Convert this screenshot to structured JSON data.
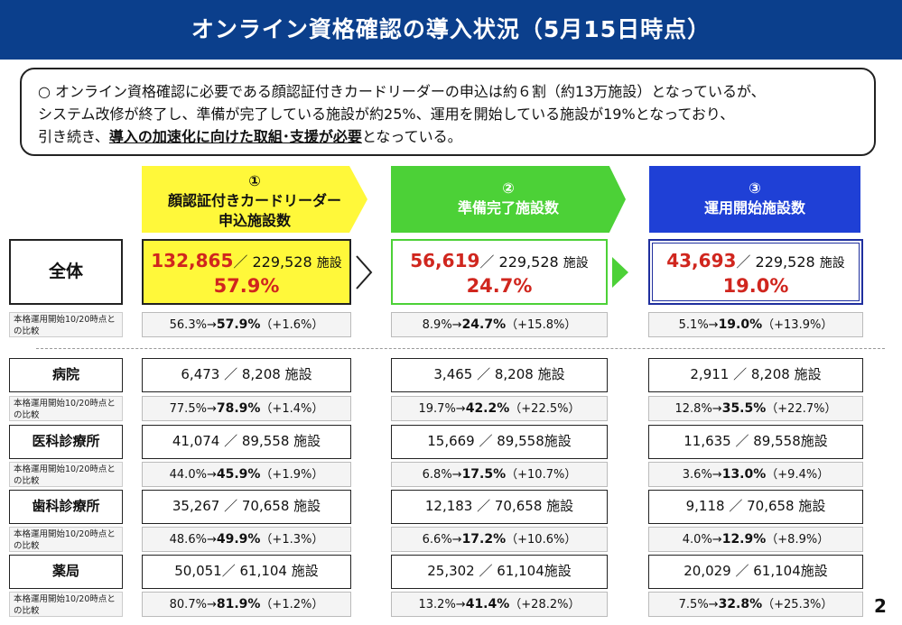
{
  "title": "オンライン資格確認の導入状況（5月15日時点）",
  "summary": {
    "line1": "○ オンライン資格確認に必要である顔認証付きカードリーダーの申込は約６割（約13万施設）となっているが、",
    "line2": "システム改修が終了し、準備が完了している施設が約25%、運用を開始している施設が19%となっており、",
    "line3_pre": "引き続き、",
    "line3_emph": "導入の加速化に向けた取組･支援が必要",
    "line3_post": "となっている。"
  },
  "columns": [
    {
      "number": "①",
      "title1": "顔認証付きカードリーダー",
      "title2": "申込施設数",
      "color": "#fff83a"
    },
    {
      "number": "②",
      "title1": "準備完了施設数",
      "title2": "",
      "color": "#4cd137"
    },
    {
      "number": "③",
      "title1": "運用開始施設数",
      "title2": "",
      "color": "#1f40d6"
    }
  ],
  "total": {
    "label": "全体",
    "compare_label": "本格運用開始10/20時点との比較",
    "cells": [
      {
        "count": "132,865",
        "sep": "／",
        "total": "229,528",
        "unit": "施設",
        "pct": "57.9%",
        "cmp_before": "56.3%→",
        "cmp_now": "57.9%",
        "cmp_diff": "（+1.6%）"
      },
      {
        "count": "56,619",
        "sep": "／",
        "total": "229,528",
        "unit": "施設",
        "pct": "24.7%",
        "cmp_before": "8.9%→",
        "cmp_now": "24.7%",
        "cmp_diff": "（+15.8%）"
      },
      {
        "count": "43,693",
        "sep": "／",
        "total": "229,528",
        "unit": "施設",
        "pct": "19.0%",
        "cmp_before": "5.1%→",
        "cmp_now": "19.0%",
        "cmp_diff": "（+13.9%）"
      }
    ]
  },
  "rows": [
    {
      "label": "病院",
      "compare_label": "本格運用開始10/20時点との比較",
      "cells": [
        {
          "value": "6,473 ／ 8,208 施設",
          "cmp_before": "77.5%→",
          "cmp_now": "78.9%",
          "cmp_diff": "（+1.4%）"
        },
        {
          "value": "3,465 ／ 8,208 施設",
          "cmp_before": "19.7%→",
          "cmp_now": "42.2%",
          "cmp_diff": "（+22.5%）"
        },
        {
          "value": "2,911 ／ 8,208 施設",
          "cmp_before": "12.8%→",
          "cmp_now": "35.5%",
          "cmp_diff": "（+22.7%）"
        }
      ]
    },
    {
      "label": "医科診療所",
      "compare_label": "本格運用開始10/20時点との比較",
      "cells": [
        {
          "value": "41,074 ／ 89,558 施設",
          "cmp_before": "44.0%→",
          "cmp_now": "45.9%",
          "cmp_diff": "（+1.9%）"
        },
        {
          "value": "15,669 ／ 89,558施設",
          "cmp_before": "6.8%→",
          "cmp_now": "17.5%",
          "cmp_diff": "（+10.7%）"
        },
        {
          "value": "11,635 ／ 89,558施設",
          "cmp_before": "3.6%→",
          "cmp_now": "13.0%",
          "cmp_diff": "（+9.4%）"
        }
      ]
    },
    {
      "label": "歯科診療所",
      "compare_label": "本格運用開始10/20時点との比較",
      "cells": [
        {
          "value": "35,267 ／ 70,658 施設",
          "cmp_before": "48.6%→",
          "cmp_now": "49.9%",
          "cmp_diff": "（+1.3%）"
        },
        {
          "value": "12,183 ／ 70,658 施設",
          "cmp_before": "6.6%→",
          "cmp_now": "17.2%",
          "cmp_diff": "（+10.6%）"
        },
        {
          "value": "9,118 ／ 70,658 施設",
          "cmp_before": "4.0%→",
          "cmp_now": "12.9%",
          "cmp_diff": "（+8.9%）"
        }
      ]
    },
    {
      "label": "薬局",
      "compare_label": "本格運用開始10/20時点との比較",
      "cells": [
        {
          "value": "50,051／ 61,104 施設",
          "cmp_before": "80.7%→",
          "cmp_now": "81.9%",
          "cmp_diff": "（+1.2%）"
        },
        {
          "value": "25,302 ／ 61,104施設",
          "cmp_before": "13.2%→",
          "cmp_now": "41.4%",
          "cmp_diff": "（+28.2%）"
        },
        {
          "value": "20,029 ／ 61,104施設",
          "cmp_before": "7.5%→",
          "cmp_now": "32.8%",
          "cmp_diff": "（+25.3%）"
        }
      ]
    }
  ],
  "page_number": "2"
}
